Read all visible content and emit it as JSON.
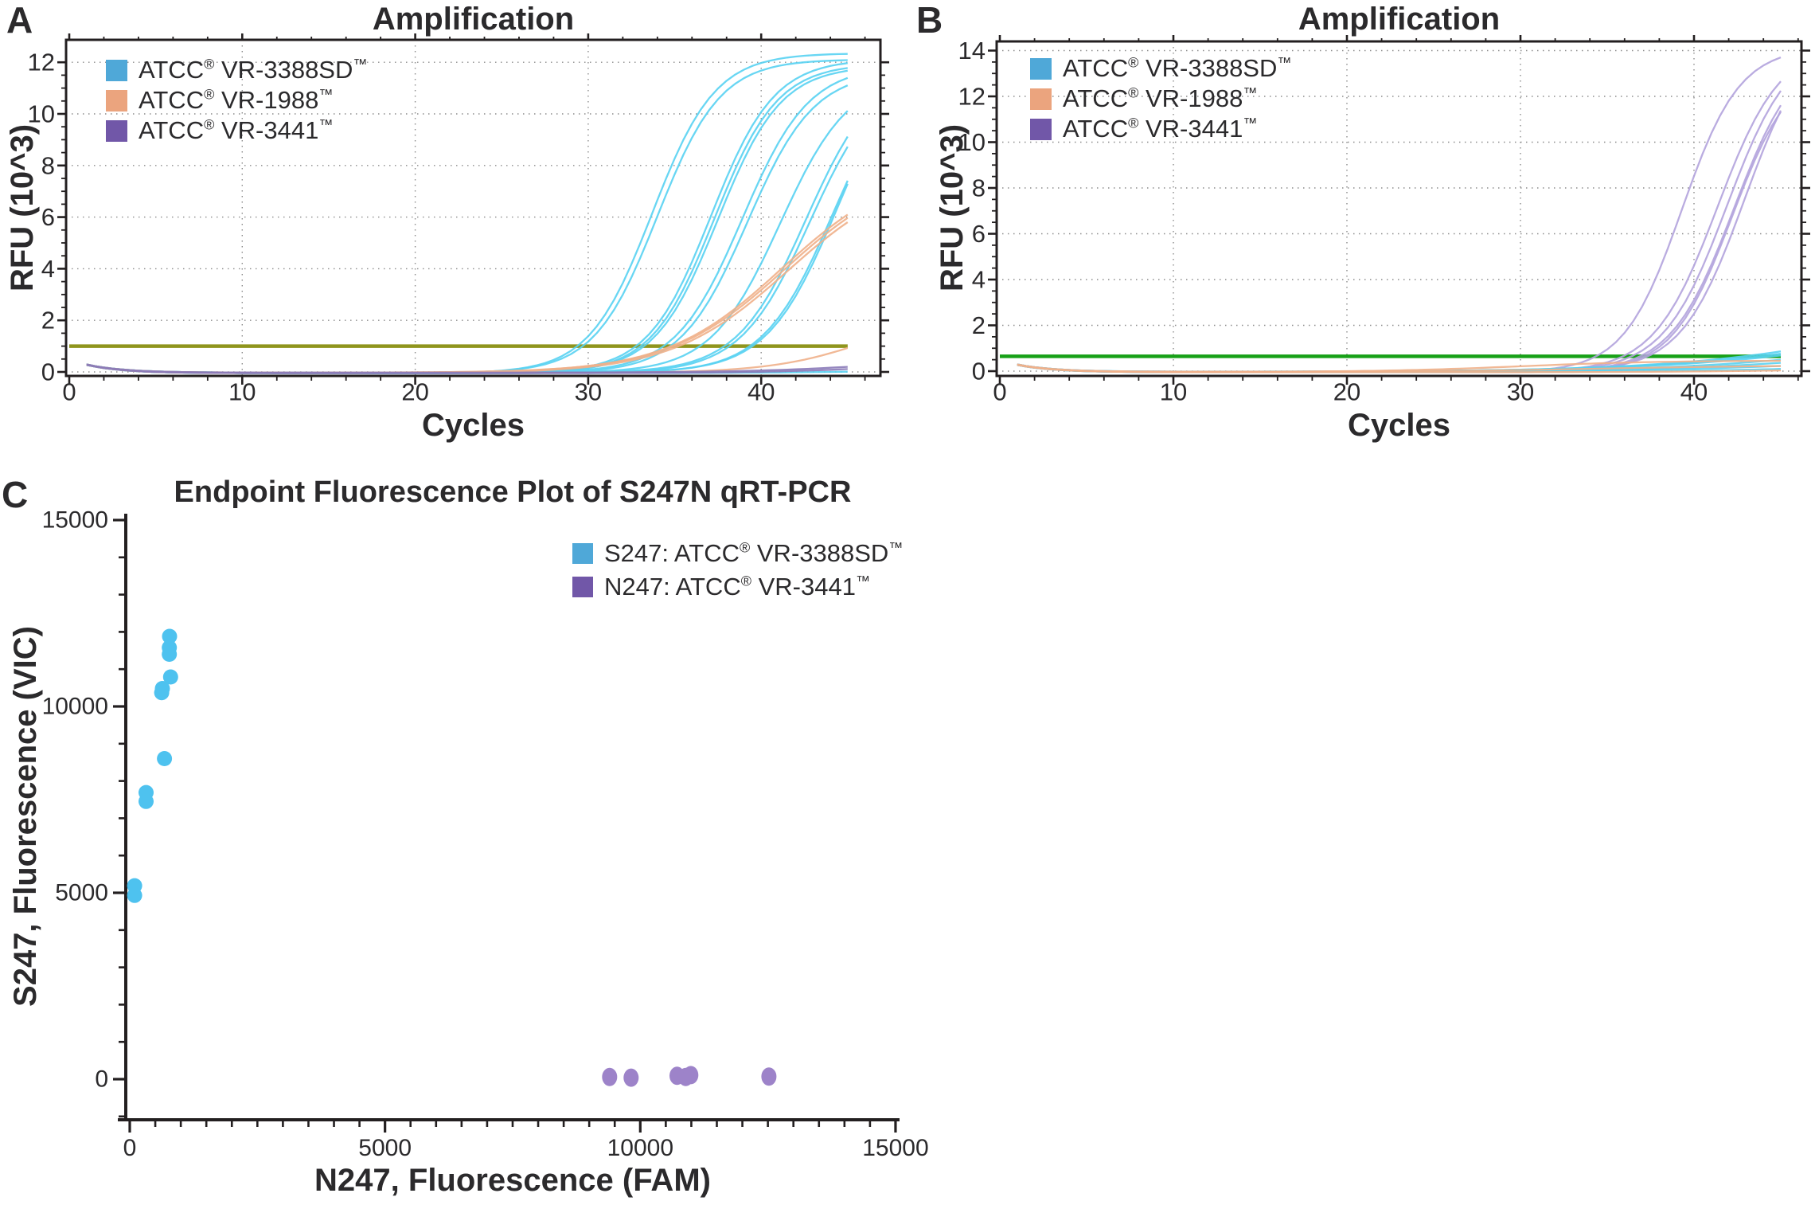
{
  "colors": {
    "text": "#2b2a2c",
    "spine": "#231f20",
    "grid": "#8c8c8c",
    "legend_blue": "#4fa8d8",
    "legend_orange": "#eba47e",
    "legend_purple": "#7157a8",
    "curve_cyan": "#58d2f2",
    "curve_orange": "#efb08a",
    "curve_purple_flat": "#8a7ab8",
    "curve_lavender": "#b3a3dd",
    "threshold_olive": "#8f951d",
    "threshold_green": "#17a017",
    "dot_blue": "#4ec2ef",
    "dot_purple": "#9d83c9"
  },
  "chart_data": [
    {
      "id": "A",
      "panel_label": "A",
      "type": "line",
      "title": "Amplification",
      "xlabel": "Cycles",
      "ylabel": "RFU (10^3)",
      "xlim": [
        -0.2,
        46.9
      ],
      "ylim": [
        -0.25,
        12.9
      ],
      "x_ticks": [
        0,
        10,
        20,
        30,
        40
      ],
      "y_ticks": [
        0,
        2,
        4,
        6,
        8,
        10,
        12
      ],
      "x_minor_step": 2,
      "y_minor_step": 0.5,
      "grid": "dotted-major",
      "legend_position": "upper-left-inside",
      "legend": [
        {
          "label": "ATCC® VR-3388SD™",
          "color": "#4fa8d8"
        },
        {
          "label": "ATCC® VR-1988™",
          "color": "#eba47e"
        },
        {
          "label": "ATCC® VR-3441™",
          "color": "#7157a8"
        }
      ],
      "threshold": {
        "y": 1.0,
        "color": "#8f951d"
      },
      "baseline": {
        "amp": 0.27,
        "tau": 2.1,
        "dip": -0.05
      },
      "cycles_range": [
        1,
        45
      ],
      "series": [
        {
          "group": "ATCC® VR-3388SD™",
          "color": "#58d2f2",
          "rate": 0.55,
          "mid": 33.7,
          "plateau": 12.4,
          "end_rfu": 12.4
        },
        {
          "group": "ATCC® VR-3388SD™",
          "color": "#58d2f2",
          "rate": 0.55,
          "mid": 34.0,
          "plateau": 12.15,
          "end_rfu": 12.1
        },
        {
          "group": "ATCC® VR-3388SD™",
          "color": "#58d2f2",
          "rate": 0.55,
          "mid": 37.1,
          "plateau": 12.15,
          "end_rfu": 12.0
        },
        {
          "group": "ATCC® VR-3388SD™",
          "color": "#58d2f2",
          "rate": 0.55,
          "mid": 37.3,
          "plateau": 12.0,
          "end_rfu": 11.8
        },
        {
          "group": "ATCC® VR-3388SD™",
          "color": "#58d2f2",
          "rate": 0.55,
          "mid": 37.5,
          "plateau": 11.9,
          "end_rfu": 11.7
        },
        {
          "group": "ATCC® VR-3388SD™",
          "color": "#58d2f2",
          "rate": 0.52,
          "mid": 38.9,
          "plateau": 11.9,
          "end_rfu": 11.5
        },
        {
          "group": "ATCC® VR-3388SD™",
          "color": "#58d2f2",
          "rate": 0.52,
          "mid": 39.2,
          "plateau": 11.7,
          "end_rfu": 11.3
        },
        {
          "group": "ATCC® VR-3388SD™",
          "color": "#58d2f2",
          "rate": 0.5,
          "mid": 41.1,
          "plateau": 11.6,
          "end_rfu": 10.1
        },
        {
          "group": "ATCC® VR-3388SD™",
          "color": "#58d2f2",
          "rate": 0.5,
          "mid": 42.6,
          "plateau": 11.9,
          "end_rfu": 9.1
        },
        {
          "group": "ATCC® VR-3388SD™",
          "color": "#58d2f2",
          "rate": 0.5,
          "mid": 42.8,
          "plateau": 11.7,
          "end_rfu": 8.8
        },
        {
          "group": "ATCC® VR-3388SD™",
          "color": "#58d2f2",
          "rate": 0.5,
          "mid": 44.1,
          "plateau": 12.2,
          "end_rfu": 7.6
        },
        {
          "group": "ATCC® VR-3388SD™",
          "color": "#58d2f2",
          "rate": 0.5,
          "mid": 44.35,
          "plateau": 12.6,
          "end_rfu": 7.4
        },
        {
          "group": "ATCC® VR-3388SD™",
          "color": "#58d2f2",
          "rate": 0.2,
          "mid": 52.0,
          "plateau": 0.3,
          "end_rfu": 0.1
        },
        {
          "group": "ATCC® VR-1988™",
          "color": "#efb08a",
          "rate": 0.3,
          "mid": 41.2,
          "plateau": 8.1,
          "end_rfu": 6.1
        },
        {
          "group": "ATCC® VR-1988™",
          "color": "#efb08a",
          "rate": 0.3,
          "mid": 41.35,
          "plateau": 8.0,
          "end_rfu": 6.0
        },
        {
          "group": "ATCC® VR-1988™",
          "color": "#efb08a",
          "rate": 0.3,
          "mid": 41.5,
          "plateau": 7.9,
          "end_rfu": 5.9
        },
        {
          "group": "ATCC® VR-1988™",
          "color": "#efb08a",
          "rate": 0.35,
          "mid": 46.5,
          "plateau": 2.6,
          "end_rfu": 1.0
        },
        {
          "group": "ATCC® VR-3441™",
          "color": "#8a7ab8",
          "rate": 0.25,
          "mid": 48.0,
          "plateau": 0.7,
          "end_rfu": 0.2
        },
        {
          "group": "ATCC® VR-3441™",
          "color": "#8a7ab8",
          "rate": 0.25,
          "mid": 49.0,
          "plateau": 0.6,
          "end_rfu": 0.15
        }
      ]
    },
    {
      "id": "B",
      "panel_label": "B",
      "type": "line",
      "title": "Amplification",
      "xlabel": "Cycles",
      "ylabel": "RFU (10^3)",
      "xlim": [
        -0.2,
        46.2
      ],
      "ylim": [
        -0.25,
        14.4
      ],
      "x_ticks": [
        0,
        10,
        20,
        30,
        40
      ],
      "y_ticks": [
        0,
        2,
        4,
        6,
        8,
        10,
        12,
        14
      ],
      "x_minor_step": 2,
      "y_minor_step": 0.5,
      "grid": "dotted-major",
      "legend_position": "upper-left-inside",
      "legend": [
        {
          "label": "ATCC® VR-3388SD™",
          "color": "#4fa8d8"
        },
        {
          "label": "ATCC® VR-1988™",
          "color": "#eba47e"
        },
        {
          "label": "ATCC® VR-3441™",
          "color": "#7157a8"
        }
      ],
      "threshold": {
        "y": 0.65,
        "color": "#17a017"
      },
      "baseline": {
        "amp": 0.27,
        "tau": 2.1,
        "dip": -0.05
      },
      "cycles_range": [
        1,
        45
      ],
      "series": [
        {
          "group": "ATCC® VR-3441™",
          "color": "#b3a3dd",
          "rate": 0.6,
          "mid": 39.3,
          "plateau": 14.2,
          "end_rfu": 13.8
        },
        {
          "group": "ATCC® VR-3441™",
          "color": "#b3a3dd",
          "rate": 0.55,
          "mid": 41.35,
          "plateau": 14.4,
          "end_rfu": 12.7
        },
        {
          "group": "ATCC® VR-3441™",
          "color": "#b3a3dd",
          "rate": 0.55,
          "mid": 41.9,
          "plateau": 14.5,
          "end_rfu": 12.2
        },
        {
          "group": "ATCC® VR-3441™",
          "color": "#b3a3dd",
          "rate": 0.55,
          "mid": 42.3,
          "plateau": 14.3,
          "end_rfu": 11.7
        },
        {
          "group": "ATCC® VR-3441™",
          "color": "#b3a3dd",
          "rate": 0.58,
          "mid": 42.2,
          "plateau": 13.6,
          "end_rfu": 11.5
        },
        {
          "group": "ATCC® VR-3441™",
          "color": "#b3a3dd",
          "rate": 0.55,
          "mid": 42.9,
          "plateau": 15.0,
          "end_rfu": 11.4
        },
        {
          "group": "ATCC® VR-3388SD™",
          "color": "#58d2f2",
          "rate": 0.15,
          "mid": 55.0,
          "plateau": 5.0,
          "end_rfu": 0.9
        },
        {
          "group": "ATCC® VR-3388SD™",
          "color": "#58d2f2",
          "rate": 0.15,
          "mid": 55.0,
          "plateau": 4.4,
          "end_rfu": 0.8
        },
        {
          "group": "ATCC® VR-3388SD™",
          "color": "#58d2f2",
          "rate": 0.15,
          "mid": 55.0,
          "plateau": 3.9,
          "end_rfu": 0.7
        },
        {
          "group": "ATCC® VR-3388SD™",
          "color": "#58d2f2",
          "rate": 0.15,
          "mid": 55.0,
          "plateau": 3.0,
          "end_rfu": 0.55
        },
        {
          "group": "ATCC® VR-3388SD™",
          "color": "#58d2f2",
          "rate": 0.15,
          "mid": 55.0,
          "plateau": 2.2,
          "end_rfu": 0.4
        },
        {
          "group": "ATCC® VR-3388SD™",
          "color": "#58d2f2",
          "rate": 0.15,
          "mid": 55.0,
          "plateau": 1.4,
          "end_rfu": 0.25
        },
        {
          "group": "ATCC® VR-3388SD™",
          "color": "#58d2f2",
          "rate": 0.15,
          "mid": 55.0,
          "plateau": 0.8,
          "end_rfu": 0.15
        },
        {
          "group": "ATCC® VR-1988™",
          "color": "#efb08a",
          "rate": 0.25,
          "mid": 30.0,
          "plateau": 0.5,
          "end_rfu": 0.5
        },
        {
          "group": "ATCC® VR-1988™",
          "color": "#efb08a",
          "rate": 0.2,
          "mid": 35.0,
          "plateau": 0.28,
          "end_rfu": 0.25
        },
        {
          "group": "ATCC® VR-1988™",
          "color": "#efb08a",
          "rate": 0.2,
          "mid": 50.0,
          "plateau": 0.3,
          "end_rfu": 0.1
        }
      ]
    },
    {
      "id": "C",
      "panel_label": "C",
      "type": "scatter",
      "title": "Endpoint Fluorescence Plot of S247N qRT-PCR",
      "xlabel": "N247, Fluorescence (FAM)",
      "ylabel": "S247, Fluorescence (VIC)",
      "xlim": [
        0,
        15000
      ],
      "ylim": [
        0,
        15000
      ],
      "x_ticks": [
        0,
        5000,
        10000,
        15000
      ],
      "y_ticks": [
        0,
        5000,
        10000,
        15000
      ],
      "x_minor_step": 500,
      "y_minor_step": 1000,
      "grid": "off",
      "legend_position": "upper-center-inside",
      "legend": [
        {
          "label": "S247: ATCC® VR-3388SD™",
          "color": "#4fa8d8"
        },
        {
          "label": "N247: ATCC® VR-3441™",
          "color": "#7157a8"
        }
      ],
      "series": [
        {
          "name": "S247: ATCC® VR-3388SD™",
          "color": "#4ec2ef",
          "marker": "circle",
          "points": [
            [
              780,
              11880
            ],
            [
              775,
              11580
            ],
            [
              775,
              11400
            ],
            [
              800,
              10790
            ],
            [
              640,
              10480
            ],
            [
              625,
              10370
            ],
            [
              680,
              8600
            ],
            [
              320,
              7690
            ],
            [
              320,
              7450
            ],
            [
              95,
              5190
            ],
            [
              95,
              4930
            ]
          ]
        },
        {
          "name": "N247: ATCC® VR-3441™",
          "color": "#9d83c9",
          "marker": "ellipse",
          "points": [
            [
              9400,
              60
            ],
            [
              9820,
              40
            ],
            [
              10720,
              90
            ],
            [
              10890,
              60
            ],
            [
              10990,
              110
            ],
            [
              12520,
              70
            ]
          ]
        }
      ]
    }
  ]
}
